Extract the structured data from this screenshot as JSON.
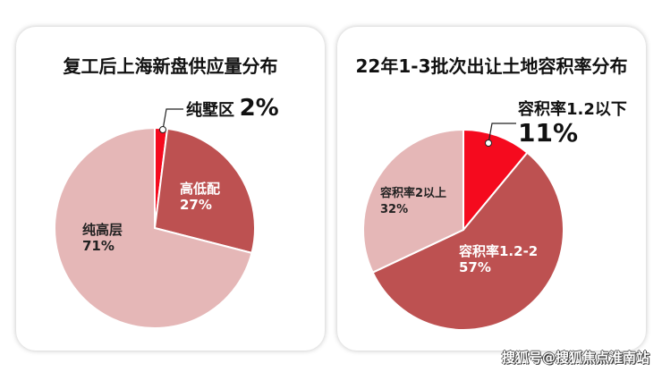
{
  "chart_data": [
    {
      "type": "pie",
      "title": "复工后上海新盘供应量分布",
      "slices": [
        {
          "label": "纯墅区",
          "value": 2,
          "display": "2%",
          "color": "#f50a1e"
        },
        {
          "label": "高低配",
          "value": 27,
          "display": "27%",
          "color": "#bd5151"
        },
        {
          "label": "纯高层",
          "value": 71,
          "display": "71%",
          "color": "#e5b7b7"
        }
      ]
    },
    {
      "type": "pie",
      "title": "22年1-3批次出让土地容积率分布",
      "slices": [
        {
          "label": "容积率1.2以下",
          "value": 11,
          "display": "11%",
          "color": "#f50a1e"
        },
        {
          "label": "容积率1.2-2",
          "value": 57,
          "display": "57%",
          "color": "#bd5151"
        },
        {
          "label": "容积率2以上",
          "value": 32,
          "display": "32%",
          "color": "#e5b7b7"
        }
      ]
    }
  ],
  "watermark": "搜狐号@搜狐焦点淮南站"
}
